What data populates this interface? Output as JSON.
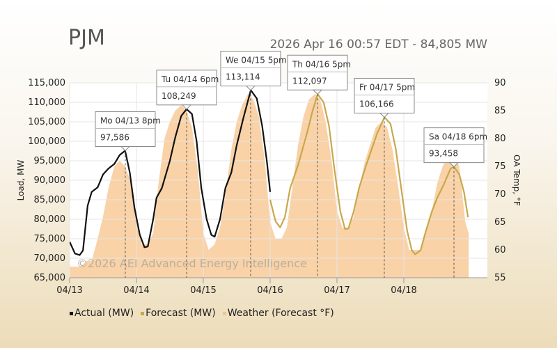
{
  "header": {
    "region": "PJM",
    "status": "2026 Apr 16 00:57 EDT - 84,805 MW"
  },
  "watermark": "©2026 AEI Advanced Energy Intelligence",
  "legend": [
    {
      "label": "Actual (MW)",
      "color": "#111111"
    },
    {
      "label": "Forecast (MW)",
      "color": "#c9a84c"
    },
    {
      "label": "Weather (Forecast °F)",
      "color": "#f7c38a"
    }
  ],
  "callouts": [
    {
      "date": "Mo 04/13 8pm",
      "value": "97,586",
      "x_day": 0.833,
      "y": 97586,
      "highlight": false
    },
    {
      "date": "Tu 04/14 6pm",
      "value": "108,249",
      "x_day": 1.75,
      "y": 108249,
      "highlight": false
    },
    {
      "date": "We 04/15 5pm",
      "value": "113,114",
      "x_day": 2.708,
      "y": 113114,
      "highlight": false
    },
    {
      "date": "Th 04/16 5pm",
      "value": "112,097",
      "x_day": 3.708,
      "y": 112097,
      "highlight": true
    },
    {
      "date": "Fr 04/17 5pm",
      "value": "106,166",
      "x_day": 4.708,
      "y": 106166,
      "highlight": false
    },
    {
      "date": "Sa 04/18 6pm",
      "value": "93,458",
      "x_day": 5.75,
      "y": 93458,
      "highlight": false
    }
  ],
  "chart_data": {
    "type": "line",
    "x_unit": "days from 04/13 00:00",
    "x_ticks": [
      "04/13",
      "04/14",
      "04/15",
      "04/16",
      "04/17",
      "04/18"
    ],
    "ylabel": "Load, MW",
    "y2label": "OA Temp, °F",
    "ylim": [
      65000,
      115000
    ],
    "y_ticks": [
      "65,000",
      "70,000",
      "75,000",
      "80,000",
      "85,000",
      "90,000",
      "95,000",
      "100,000",
      "105,000",
      "110,000",
      "115,000"
    ],
    "y2lim": [
      55,
      90
    ],
    "y2_ticks": [
      "55",
      "60",
      "65",
      "70",
      "75",
      "80",
      "85",
      "90"
    ],
    "series": [
      {
        "name": "Actual (MW)",
        "color": "#111111",
        "points": [
          [
            0.0,
            74200
          ],
          [
            0.08,
            71200
          ],
          [
            0.15,
            70800
          ],
          [
            0.2,
            72000
          ],
          [
            0.27,
            83500
          ],
          [
            0.33,
            87000
          ],
          [
            0.42,
            88200
          ],
          [
            0.5,
            91500
          ],
          [
            0.58,
            93000
          ],
          [
            0.67,
            94200
          ],
          [
            0.75,
            96500
          ],
          [
            0.83,
            97586
          ],
          [
            0.9,
            92000
          ],
          [
            0.97,
            83000
          ],
          [
            1.05,
            76000
          ],
          [
            1.12,
            72800
          ],
          [
            1.17,
            73000
          ],
          [
            1.25,
            80000
          ],
          [
            1.3,
            85500
          ],
          [
            1.38,
            88000
          ],
          [
            1.5,
            95000
          ],
          [
            1.58,
            101000
          ],
          [
            1.67,
            106500
          ],
          [
            1.75,
            108249
          ],
          [
            1.83,
            107000
          ],
          [
            1.9,
            100000
          ],
          [
            1.97,
            88000
          ],
          [
            2.05,
            80000
          ],
          [
            2.12,
            76000
          ],
          [
            2.17,
            75500
          ],
          [
            2.25,
            80000
          ],
          [
            2.33,
            88000
          ],
          [
            2.42,
            92000
          ],
          [
            2.5,
            99000
          ],
          [
            2.6,
            106000
          ],
          [
            2.71,
            113114
          ],
          [
            2.8,
            111000
          ],
          [
            2.88,
            104000
          ],
          [
            2.95,
            95000
          ],
          [
            3.0,
            87000
          ]
        ]
      },
      {
        "name": "Forecast (MW)",
        "color": "#c9a84c",
        "points": [
          [
            3.0,
            85000
          ],
          [
            3.08,
            79500
          ],
          [
            3.15,
            77900
          ],
          [
            3.22,
            80500
          ],
          [
            3.3,
            88000
          ],
          [
            3.42,
            94000
          ],
          [
            3.55,
            102000
          ],
          [
            3.63,
            107500
          ],
          [
            3.71,
            112097
          ],
          [
            3.8,
            110000
          ],
          [
            3.88,
            104000
          ],
          [
            3.96,
            93000
          ],
          [
            4.05,
            82000
          ],
          [
            4.12,
            77500
          ],
          [
            4.17,
            77600
          ],
          [
            4.25,
            82000
          ],
          [
            4.33,
            88000
          ],
          [
            4.42,
            93000
          ],
          [
            4.5,
            97000
          ],
          [
            4.6,
            102000
          ],
          [
            4.71,
            106166
          ],
          [
            4.8,
            104500
          ],
          [
            4.88,
            98000
          ],
          [
            4.96,
            88000
          ],
          [
            5.05,
            77000
          ],
          [
            5.12,
            72000
          ],
          [
            5.17,
            71000
          ],
          [
            5.25,
            72000
          ],
          [
            5.33,
            77000
          ],
          [
            5.42,
            82000
          ],
          [
            5.5,
            85500
          ],
          [
            5.6,
            89000
          ],
          [
            5.7,
            93000
          ],
          [
            5.75,
            93458
          ],
          [
            5.83,
            91500
          ],
          [
            5.9,
            87000
          ],
          [
            5.96,
            80500
          ]
        ]
      }
    ],
    "weather": {
      "name": "Weather (Forecast °F)",
      "color": "#f7c38a",
      "points": [
        [
          0.0,
          57
        ],
        [
          0.08,
          57
        ],
        [
          0.17,
          57
        ],
        [
          0.25,
          58
        ],
        [
          0.33,
          58
        ],
        [
          0.42,
          62
        ],
        [
          0.5,
          66
        ],
        [
          0.58,
          71
        ],
        [
          0.67,
          75
        ],
        [
          0.75,
          76
        ],
        [
          0.83,
          75
        ],
        [
          0.92,
          72
        ],
        [
          1.0,
          65
        ],
        [
          1.08,
          61
        ],
        [
          1.17,
          61
        ],
        [
          1.25,
          63
        ],
        [
          1.33,
          72
        ],
        [
          1.42,
          80
        ],
        [
          1.5,
          83
        ],
        [
          1.58,
          85
        ],
        [
          1.67,
          86
        ],
        [
          1.75,
          85
        ],
        [
          1.83,
          82
        ],
        [
          1.92,
          74
        ],
        [
          2.0,
          63
        ],
        [
          2.08,
          60
        ],
        [
          2.17,
          61
        ],
        [
          2.25,
          64
        ],
        [
          2.33,
          70
        ],
        [
          2.42,
          78
        ],
        [
          2.5,
          83
        ],
        [
          2.58,
          86
        ],
        [
          2.67,
          88
        ],
        [
          2.75,
          87
        ],
        [
          2.83,
          84
        ],
        [
          2.92,
          76
        ],
        [
          3.0,
          65
        ],
        [
          3.08,
          62
        ],
        [
          3.17,
          62
        ],
        [
          3.25,
          64
        ],
        [
          3.33,
          71
        ],
        [
          3.42,
          79
        ],
        [
          3.5,
          84
        ],
        [
          3.58,
          87
        ],
        [
          3.67,
          88
        ],
        [
          3.75,
          87
        ],
        [
          3.83,
          83
        ],
        [
          3.92,
          76
        ],
        [
          4.0,
          67
        ],
        [
          4.08,
          64
        ],
        [
          4.17,
          64
        ],
        [
          4.25,
          66
        ],
        [
          4.33,
          71
        ],
        [
          4.42,
          76
        ],
        [
          4.5,
          79
        ],
        [
          4.58,
          82
        ],
        [
          4.67,
          83
        ],
        [
          4.75,
          82
        ],
        [
          4.83,
          78
        ],
        [
          4.92,
          71
        ],
        [
          5.0,
          64
        ],
        [
          5.08,
          60
        ],
        [
          5.17,
          60
        ],
        [
          5.25,
          60
        ],
        [
          5.33,
          63
        ],
        [
          5.42,
          67
        ],
        [
          5.5,
          72
        ],
        [
          5.58,
          75
        ],
        [
          5.67,
          77
        ],
        [
          5.75,
          77
        ],
        [
          5.83,
          75
        ],
        [
          5.92,
          65
        ],
        [
          5.97,
          63
        ]
      ]
    }
  }
}
